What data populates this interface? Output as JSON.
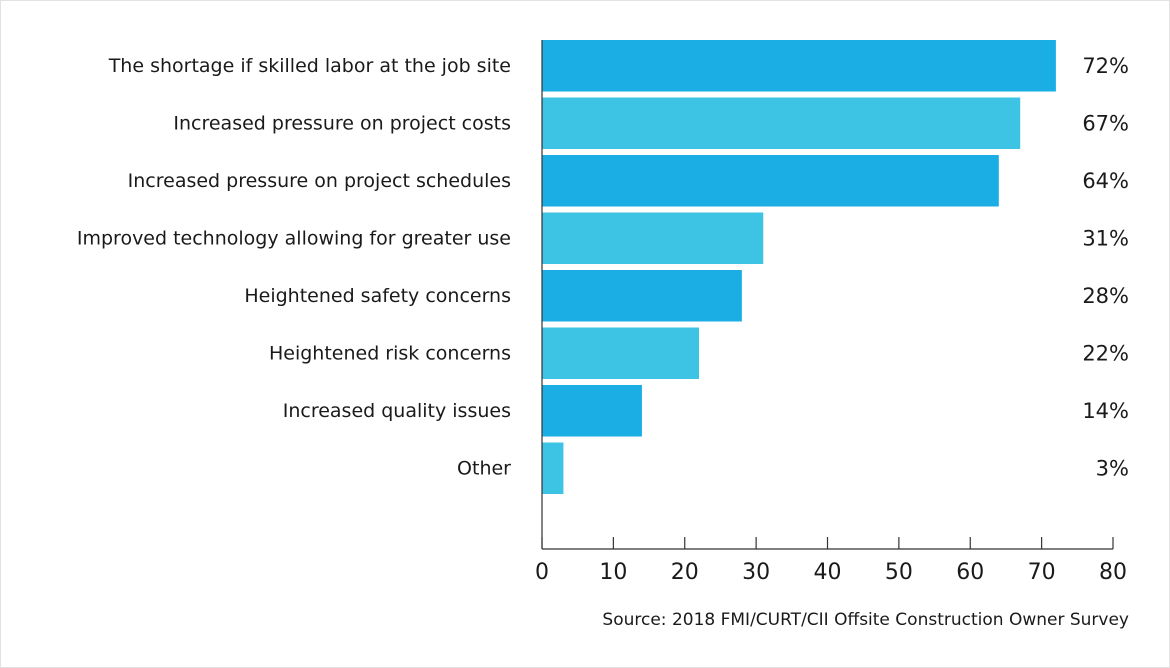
{
  "chart_data": {
    "type": "bar",
    "orientation": "horizontal",
    "categories": [
      "The shortage if skilled labor at the job site",
      "Increased pressure on project costs",
      "Increased pressure on project schedules",
      "Improved technology allowing for greater use",
      "Heightened safety concerns",
      "Heightened risk concerns",
      "Increased quality issues",
      "Other"
    ],
    "values": [
      72,
      67,
      64,
      31,
      28,
      22,
      14,
      3
    ],
    "value_labels": [
      "72%",
      "67%",
      "64%",
      "31%",
      "28%",
      "22%",
      "14%",
      "3%"
    ],
    "xlim": [
      0,
      80
    ],
    "xticks": [
      0,
      10,
      20,
      30,
      40,
      50,
      60,
      70,
      80
    ],
    "colors": [
      "#1aaee4",
      "#3dc4e4"
    ],
    "grid": false,
    "source": "Source: 2018 FMI/CURT/CII Offsite Construction Owner Survey"
  }
}
